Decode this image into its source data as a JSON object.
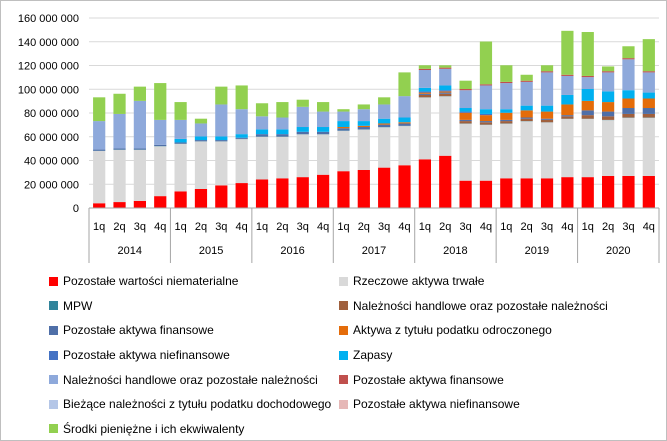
{
  "chart_data": {
    "type": "bar",
    "stacked": true,
    "title": "",
    "xlabel": "",
    "ylabel": "",
    "ylim": [
      0,
      160000000
    ],
    "yticks": [
      0,
      20000000,
      40000000,
      60000000,
      80000000,
      100000000,
      120000000,
      140000000,
      160000000
    ],
    "ytick_labels": [
      "0",
      "20 000 000",
      "40 000 000",
      "60 000 000",
      "80 000 000",
      "100 000 000",
      "120 000 000",
      "140 000 000",
      "160 000 000"
    ],
    "grid": true,
    "legend_position": "bottom",
    "categories": [
      "1q",
      "2q",
      "3q",
      "4q",
      "1q",
      "2q",
      "3q",
      "4q",
      "1q",
      "2q",
      "3q",
      "4q",
      "1q",
      "2q",
      "3q",
      "4q",
      "1q",
      "2q",
      "3q",
      "4q",
      "1q",
      "2q",
      "3q",
      "4q",
      "1q",
      "2q",
      "3q",
      "4q"
    ],
    "groups": [
      {
        "label": "2014",
        "count": 4
      },
      {
        "label": "2015",
        "count": 4
      },
      {
        "label": "2016",
        "count": 4
      },
      {
        "label": "2017",
        "count": 4
      },
      {
        "label": "2018",
        "count": 4
      },
      {
        "label": "2019",
        "count": 4
      },
      {
        "label": "2020",
        "count": 4
      }
    ],
    "series": [
      {
        "name": "Pozostałe wartości niematerialne",
        "color": "#ff0000",
        "values": [
          4000000,
          5000000,
          6000000,
          10000000,
          14000000,
          16000000,
          19000000,
          21000000,
          24000000,
          25000000,
          26000000,
          28000000,
          31000000,
          32000000,
          34000000,
          36000000,
          41000000,
          44000000,
          23000000,
          23000000,
          25000000,
          25000000,
          25000000,
          26000000,
          26000000,
          27000000,
          27000000,
          27000000
        ]
      },
      {
        "name": "Rzeczowe aktywa trwałe",
        "color": "#d9d9d9",
        "values": [
          44000000,
          44000000,
          43000000,
          42000000,
          40000000,
          40000000,
          37000000,
          37000000,
          36000000,
          35000000,
          36000000,
          34000000,
          34000000,
          34000000,
          34000000,
          33000000,
          52000000,
          50000000,
          48000000,
          47000000,
          46000000,
          48000000,
          47000000,
          49000000,
          49000000,
          47000000,
          49000000,
          49000000
        ]
      },
      {
        "name": "MPW",
        "color": "#31849b",
        "values": [
          200000,
          200000,
          200000,
          200000,
          200000,
          200000,
          200000,
          200000,
          200000,
          200000,
          200000,
          200000,
          200000,
          200000,
          200000,
          200000,
          200000,
          200000,
          200000,
          200000,
          200000,
          200000,
          200000,
          200000,
          200000,
          200000,
          200000,
          200000
        ]
      },
      {
        "name": "Należności handlowe oraz pozostałe należności",
        "color": "#a0603d",
        "values": [
          0,
          0,
          0,
          0,
          0,
          0,
          0,
          0,
          0,
          0,
          0,
          0,
          0,
          0,
          0,
          0,
          2000000,
          2000000,
          2000000,
          2000000,
          2000000,
          2000000,
          2000000,
          2000000,
          3000000,
          3000000,
          3000000,
          3000000
        ]
      },
      {
        "name": "Pozostałe aktywa finansowe",
        "color": "#4f6fa8",
        "values": [
          1000000,
          1000000,
          1000000,
          1000000,
          1000000,
          1000000,
          1000000,
          1000000,
          2000000,
          2000000,
          2000000,
          2000000,
          2000000,
          2000000,
          2000000,
          2000000,
          1000000,
          1000000,
          1000000,
          1000000,
          1000000,
          1000000,
          1000000,
          1000000,
          4000000,
          4000000,
          5000000,
          5000000
        ]
      },
      {
        "name": "Aktywa z tytułu podatku odroczonego",
        "color": "#e46c0a",
        "values": [
          0,
          0,
          0,
          0,
          0,
          0,
          0,
          0,
          0,
          0,
          0,
          0,
          1000000,
          1000000,
          1000000,
          1000000,
          1000000,
          1000000,
          6000000,
          5000000,
          6000000,
          6000000,
          6000000,
          9000000,
          8000000,
          8000000,
          8000000,
          8000000
        ]
      },
      {
        "name": "Pozostałe aktywa niefinansowe",
        "color": "#4472c4",
        "values": [
          0,
          0,
          0,
          0,
          0,
          0,
          0,
          0,
          0,
          0,
          0,
          0,
          0,
          0,
          0,
          0,
          1000000,
          1000000,
          1000000,
          1000000,
          0,
          0,
          0,
          0,
          0,
          0,
          0,
          0
        ]
      },
      {
        "name": "Zapasy",
        "color": "#00b0f0",
        "values": [
          0,
          0,
          0,
          0,
          3000000,
          3000000,
          3000000,
          3000000,
          4000000,
          4000000,
          4000000,
          4000000,
          5000000,
          4000000,
          4000000,
          4000000,
          3000000,
          4000000,
          3000000,
          4000000,
          3000000,
          4000000,
          5000000,
          8000000,
          10000000,
          9000000,
          7000000,
          5000000
        ]
      },
      {
        "name": "Należności handlowe oraz pozostałe należności",
        "color": "#8ea9db",
        "values": [
          24000000,
          29000000,
          40000000,
          21000000,
          16000000,
          11000000,
          27000000,
          21000000,
          11000000,
          10000000,
          17000000,
          13000000,
          8000000,
          10000000,
          12000000,
          18000000,
          15000000,
          14000000,
          15000000,
          20000000,
          22000000,
          20000000,
          28000000,
          16000000,
          10000000,
          16000000,
          26000000,
          17000000
        ]
      },
      {
        "name": "Pozostałe aktywa finansowe",
        "color": "#c0504d",
        "values": [
          0,
          0,
          0,
          0,
          0,
          0,
          0,
          0,
          0,
          0,
          0,
          0,
          0,
          0,
          0,
          0,
          1000000,
          1000000,
          1000000,
          1000000,
          1000000,
          1000000,
          1000000,
          1000000,
          1000000,
          1000000,
          1000000,
          1000000
        ]
      },
      {
        "name": "Bieżące należności z tytułu podatku dochodowego",
        "color": "#b4c6e7",
        "values": [
          0,
          0,
          0,
          0,
          0,
          0,
          0,
          0,
          0,
          0,
          0,
          0,
          0,
          0,
          0,
          0,
          0,
          0,
          0,
          0,
          0,
          0,
          0,
          0,
          0,
          0,
          0,
          0
        ]
      },
      {
        "name": "Pozostałe aktywa niefinansowe",
        "color": "#e6b8b7",
        "values": [
          0,
          0,
          0,
          0,
          0,
          0,
          0,
          0,
          0,
          0,
          0,
          0,
          0,
          0,
          0,
          0,
          0,
          0,
          0,
          0,
          0,
          0,
          0,
          0,
          0,
          0,
          0,
          0
        ]
      },
      {
        "name": "Środki pieniężne i ich ekwiwalenty",
        "color": "#92d050",
        "values": [
          20000000,
          17000000,
          12000000,
          31000000,
          15000000,
          4000000,
          15000000,
          20000000,
          11000000,
          13000000,
          6000000,
          8000000,
          2000000,
          4000000,
          6000000,
          20000000,
          3000000,
          2000000,
          7000000,
          36000000,
          14000000,
          5000000,
          5000000,
          37000000,
          37000000,
          4000000,
          10000000,
          27000000
        ]
      }
    ]
  }
}
